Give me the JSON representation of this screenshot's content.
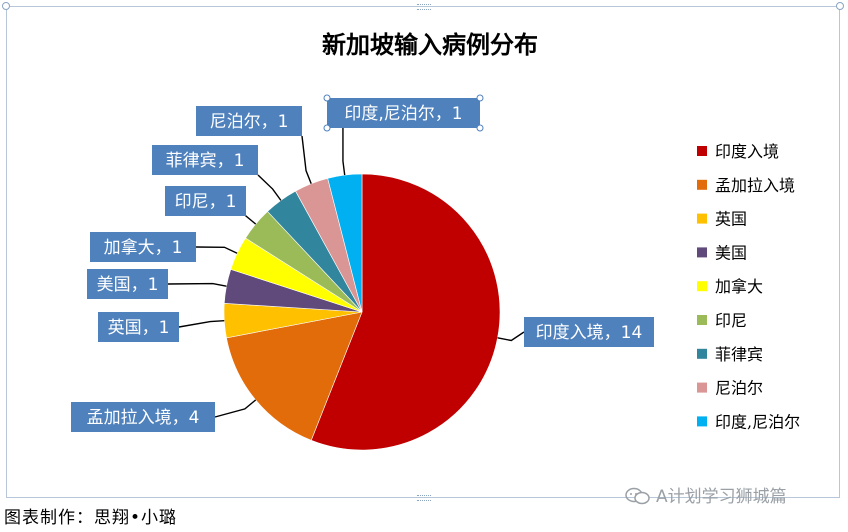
{
  "chart_data": {
    "type": "pie",
    "title": "新加坡输入病例分布",
    "categories": [
      "印度入境",
      "孟加拉入境",
      "英国",
      "美国",
      "加拿大",
      "印尼",
      "菲律宾",
      "尼泊尔",
      "印度,尼泊尔"
    ],
    "values": [
      14,
      4,
      1,
      1,
      1,
      1,
      1,
      1,
      1
    ],
    "data_labels": [
      "印度入境，14",
      "孟加拉入境，4",
      "英国，1",
      "美国，1",
      "加拿大，1",
      "印尼，1",
      "菲律宾，1",
      "尼泊尔，1",
      "印度,尼泊尔，1"
    ],
    "colors": [
      "#c00000",
      "#e26b0a",
      "#ffc000",
      "#604a7b",
      "#ffff00",
      "#9bbb59",
      "#31859c",
      "#da9694",
      "#00b0f0"
    ],
    "legend": {
      "position": "right",
      "entries": [
        "印度入境",
        "孟加拉入境",
        "英国",
        "美国",
        "加拿大",
        "印尼",
        "菲律宾",
        "尼泊尔",
        "印度,尼泊尔"
      ]
    },
    "label_box_color": "#4f81bd"
  },
  "caption": "图表制作：思翔•小璐",
  "watermark": "A计划学习狮城篇"
}
